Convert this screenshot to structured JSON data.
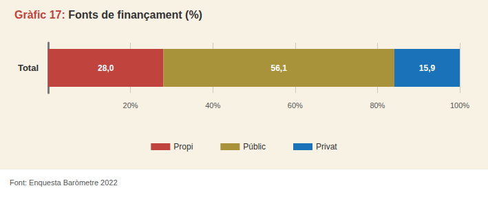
{
  "chart_data": {
    "type": "bar",
    "title": "Gràfic 17: Fonts de finançament (%)",
    "source": "Font: Enquesta Baròmetre 2022",
    "orientation": "horizontal",
    "stacked": true,
    "data_labels": true,
    "grid": true,
    "legend": "bottom",
    "categories": [
      "Total"
    ],
    "series": [
      {
        "name": "Propi",
        "color": "#c0433d",
        "values": [
          28.0
        ],
        "value_labels": [
          "28,0"
        ]
      },
      {
        "name": "Públic",
        "color": "#a8923a",
        "values": [
          56.1
        ],
        "value_labels": [
          "56,1"
        ]
      },
      {
        "name": "Privat",
        "color": "#1a72b9",
        "values": [
          15.9
        ],
        "value_labels": [
          "15,9"
        ]
      }
    ],
    "xlim": [
      0,
      100
    ],
    "xticks": [
      {
        "value": 20,
        "label": "20%"
      },
      {
        "value": 40,
        "label": "40%"
      },
      {
        "value": 60,
        "label": "60%"
      },
      {
        "value": 80,
        "label": "80%"
      },
      {
        "value": 100,
        "label": "100%"
      }
    ]
  }
}
